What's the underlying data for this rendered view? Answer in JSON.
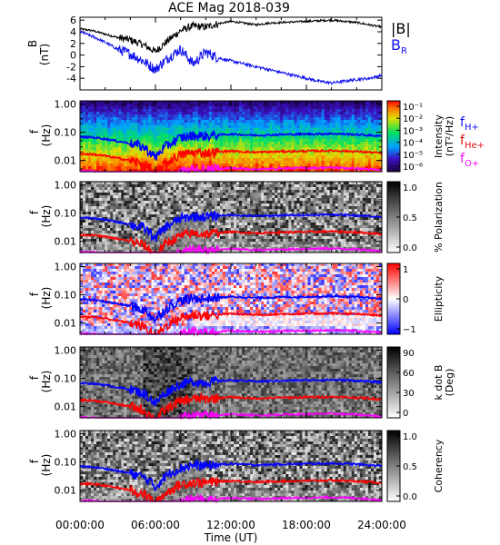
{
  "figure": {
    "title": "ACE Mag 2018-039",
    "xlabel": "Time (UT)",
    "x_ticks": [
      "00:00:00",
      "06:00:00",
      "12:00:00",
      "18:00:00",
      "24:00:00"
    ]
  },
  "colors": {
    "B_total": "#000000",
    "B_R": "#1010ee",
    "f_H": "#0000ff",
    "f_He": "#ff0000",
    "f_O": "#ff00ff"
  },
  "chart_data": [
    {
      "type": "line",
      "panel": "B",
      "ylabel_1": "B",
      "ylabel_2": "(nT)",
      "ylim": [
        -6,
        6.5
      ],
      "y_ticks": [
        "6",
        "4",
        "2",
        "0",
        "-2",
        "-4"
      ],
      "y_tick_values": [
        6,
        4,
        2,
        0,
        -2,
        -4
      ],
      "x": [
        0,
        1,
        2,
        3,
        4,
        5,
        6,
        7,
        8,
        9,
        10,
        11,
        12,
        13,
        14,
        15,
        16,
        17,
        18,
        19,
        20,
        21,
        22,
        23,
        24
      ],
      "series": [
        {
          "name": "|B|",
          "values": [
            4.5,
            4.2,
            3.6,
            3.0,
            2.6,
            1.8,
            0.6,
            2.5,
            4.2,
            5.0,
            4.8,
            5.4,
            5.8,
            5.5,
            5.2,
            5.5,
            5.6,
            5.7,
            5.8,
            5.9,
            6.0,
            5.8,
            5.6,
            5.2,
            4.8
          ]
        },
        {
          "name": "B_R",
          "values": [
            4.0,
            3.2,
            2.2,
            1.0,
            0.2,
            -1.0,
            -2.5,
            -0.5,
            1.0,
            -1.5,
            0.5,
            -0.5,
            -1.0,
            -1.5,
            -2.0,
            -2.5,
            -3.0,
            -3.5,
            -4.0,
            -4.5,
            -4.8,
            -4.5,
            -4.2,
            -4.0,
            -3.5
          ]
        }
      ],
      "legend": [
        "|B|",
        "B",
        "R"
      ]
    },
    {
      "type": "heatmap",
      "panel": "intensity",
      "ylabel_1": "f",
      "ylabel_2": "(Hz)",
      "colorbar_title": "Intensity",
      "colorbar_unit": "(nT²/Hz)",
      "colorbar_ticks": [
        "10⁻¹",
        "10⁻²",
        "10⁻³",
        "10⁻⁴",
        "10⁻⁵",
        "10⁻⁶"
      ],
      "legend": [
        {
          "base": "f",
          "sub": "H+",
          "color": "#1010ee"
        },
        {
          "base": "f",
          "sub": "He+",
          "color": "#dd1010"
        },
        {
          "base": "f",
          "sub": "O+",
          "color": "#ee10ee"
        }
      ]
    },
    {
      "type": "heatmap",
      "panel": "polarization",
      "ylabel_1": "f",
      "ylabel_2": "(Hz)",
      "colorbar_title": "% Polarization",
      "colorbar_ticks": [
        "1.0",
        "0.5",
        "0.0"
      ]
    },
    {
      "type": "heatmap",
      "panel": "ellipticity",
      "ylabel_1": "f",
      "ylabel_2": "(Hz)",
      "colorbar_title": "Ellipticity",
      "colorbar_ticks": [
        "1",
        "0",
        "−1"
      ]
    },
    {
      "type": "heatmap",
      "panel": "kdotB",
      "ylabel_1": "f",
      "ylabel_2": "(Hz)",
      "colorbar_title": "k dot B",
      "colorbar_unit": "(Deg)",
      "colorbar_ticks": [
        "90",
        "60",
        "30",
        "0"
      ]
    },
    {
      "type": "heatmap",
      "panel": "coherency",
      "ylabel_1": "f",
      "ylabel_2": "(Hz)",
      "colorbar_title": "Coherency",
      "colorbar_ticks": [
        "1.0",
        "0.5",
        "0.0"
      ]
    }
  ],
  "freq_axis": {
    "y_ticks": [
      "1.00",
      "0.10",
      "0.01"
    ],
    "y_tick_values": [
      1.0,
      0.1,
      0.01
    ],
    "ylim": [
      0.004,
      1.3
    ],
    "scale": "log"
  },
  "gyro_frequencies": {
    "x": [
      0,
      1,
      2,
      3,
      4,
      5,
      6,
      7,
      8,
      9,
      10,
      11,
      12,
      13,
      14,
      15,
      16,
      17,
      18,
      19,
      20,
      21,
      22,
      23,
      24
    ],
    "f_H": [
      0.068,
      0.066,
      0.058,
      0.048,
      0.04,
      0.03,
      0.012,
      0.035,
      0.062,
      0.076,
      0.073,
      0.08,
      0.086,
      0.082,
      0.078,
      0.08,
      0.083,
      0.084,
      0.086,
      0.087,
      0.089,
      0.086,
      0.083,
      0.078,
      0.072
    ],
    "f_He": [
      0.017,
      0.0165,
      0.0145,
      0.012,
      0.01,
      0.0075,
      0.003,
      0.0088,
      0.0155,
      0.019,
      0.0183,
      0.02,
      0.0215,
      0.0205,
      0.0195,
      0.02,
      0.0208,
      0.021,
      0.0215,
      0.0218,
      0.0222,
      0.0215,
      0.0208,
      0.0195,
      0.018
    ],
    "f_O": [
      0.0042,
      0.0041,
      0.0036,
      0.003,
      0.0025,
      0.0019,
      0.0008,
      0.0022,
      0.0039,
      0.0048,
      0.0046,
      0.005,
      0.0054,
      0.0051,
      0.0049,
      0.005,
      0.0052,
      0.0053,
      0.0054,
      0.0055,
      0.0056,
      0.0054,
      0.0052,
      0.0049,
      0.0045
    ]
  }
}
